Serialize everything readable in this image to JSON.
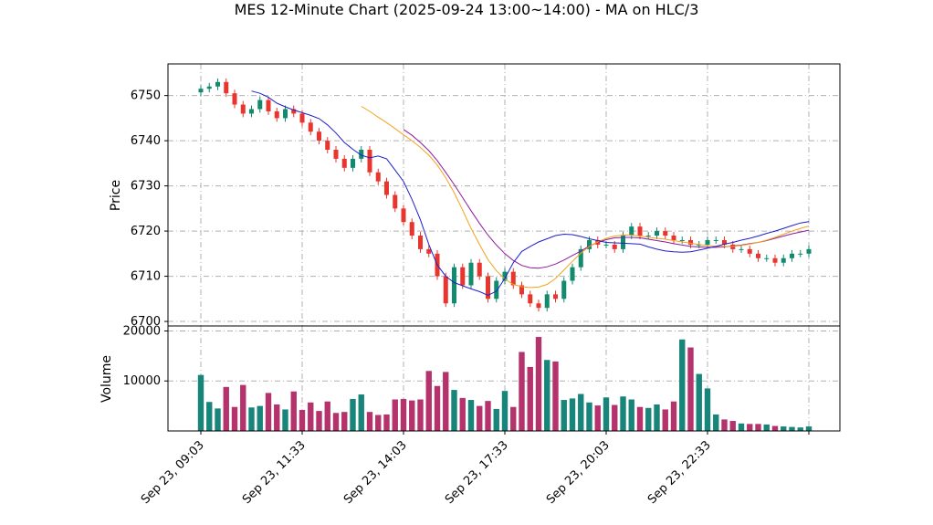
{
  "chart_data": {
    "type": "candlestick",
    "title": "MES 12-Minute Chart (2025-09-24 13:00~14:00) - MA on HLC/3",
    "price_panel": {
      "ylabel": "Price",
      "ylim": [
        6699,
        6757
      ],
      "yticks": [
        6700,
        6710,
        6720,
        6730,
        6740,
        6750
      ],
      "grid": true
    },
    "volume_panel": {
      "ylabel": "Volume",
      "ylim": [
        0,
        21000
      ],
      "yticks": [
        10000,
        20000
      ],
      "grid": true
    },
    "x_axis": {
      "tick_labels": [
        "Sep 23, 09:03",
        "Sep 23, 11:33",
        "Sep 23, 14:03",
        "Sep 23, 17:33",
        "Sep 23, 20:03",
        "Sep 23, 22:33",
        ""
      ],
      "tick_index": [
        0,
        12,
        24,
        36,
        48,
        60,
        72
      ]
    },
    "colors": {
      "up": "#118a6e",
      "down": "#e8352e",
      "ma_short": "#1f1fcc",
      "ma_mid": "#f2a31b",
      "ma_long": "#8e1aa1",
      "volume_up": "#17857a",
      "volume_down": "#b4336c"
    },
    "series_close": [
      6751.5,
      6752,
      6753,
      6750.5,
      6748,
      6746,
      6747,
      6749,
      6746.5,
      6745,
      6747,
      6746,
      6744,
      6742,
      6740,
      6738,
      6736,
      6734,
      6736,
      6738,
      6733,
      6731,
      6728,
      6725,
      6722,
      6719,
      6716,
      6715,
      6710,
      6704,
      6712,
      6708,
      6713,
      6710,
      6705,
      6709,
      6711,
      6708,
      6706,
      6704,
      6703,
      6706,
      6705,
      6709,
      6712,
      6716,
      6718,
      6717,
      6717,
      6716,
      6719,
      6721,
      6719,
      6719,
      6720,
      6719,
      6718,
      6718,
      6717,
      6717,
      6718,
      6718,
      6717,
      6716,
      6716,
      6715,
      6714,
      6714,
      6713,
      6714,
      6715,
      6715,
      6716
    ],
    "volume_series": [
      11200,
      5800,
      4500,
      8800,
      4800,
      9200,
      4700,
      5000,
      7600,
      5300,
      4300,
      7900,
      4200,
      5700,
      4000,
      5900,
      3600,
      3800,
      6400,
      7300,
      3800,
      3200,
      3300,
      6300,
      6400,
      6100,
      6300,
      12000,
      9000,
      11800,
      8200,
      6600,
      6200,
      5000,
      6000,
      4400,
      8000,
      4800,
      15800,
      12800,
      18800,
      14200,
      13900,
      6200,
      6500,
      7400,
      5700,
      5100,
      6700,
      5200,
      6900,
      6300,
      4800,
      4600,
      5300,
      4300,
      5900,
      18300,
      16700,
      11400,
      8500,
      3300,
      2300,
      2000,
      1500,
      1400,
      1400,
      1300,
      1000,
      900,
      800,
      700,
      900
    ],
    "ma_short": [
      6751,
      6750.5,
      6749.6,
      6748.3,
      6747.5,
      6746.8,
      6746.2,
      6745.6,
      6744.9,
      6743.5,
      6741.7,
      6739.6,
      6738.1,
      6736.8,
      6736.2,
      6736.6,
      6736,
      6733.5,
      6731,
      6727,
      6722.5,
      6717,
      6712.5,
      6710,
      6708.6,
      6707.9,
      6707.2,
      6706.6,
      6705.8,
      6706.7,
      6709.5,
      6713,
      6715.5,
      6716.6,
      6717.6,
      6718.3,
      6719,
      6719.3,
      6719.2,
      6718.8,
      6718.3,
      6717.9,
      6717.5,
      6717.4,
      6717.3,
      6717.2,
      6717.1,
      6716.5,
      6716,
      6715.6,
      6715.4,
      6715.3,
      6715.4,
      6715.8,
      6716.2,
      6716.6,
      6717.1,
      6717.5,
      6718,
      6718.4,
      6718.9,
      6719.5,
      6720,
      6720.6,
      6721.2,
      6721.8,
      6722.1
    ],
    "ma_mid": [
      6747.6,
      6746.5,
      6745.2,
      6744,
      6742.7,
      6741.3,
      6740,
      6738.5,
      6736.8,
      6734.6,
      6731.8,
      6728.5,
      6724.6,
      6720.6,
      6717,
      6713.7,
      6711.2,
      6709.4,
      6708.2,
      6707.7,
      6707.5,
      6707.6,
      6708.2,
      6709.5,
      6711.4,
      6713.3,
      6715.1,
      6716.6,
      6717.6,
      6718.4,
      6718.9,
      6719.1,
      6719.1,
      6718.9,
      6718.6,
      6718.4,
      6718.2,
      6717.9,
      6717.6,
      6717.3,
      6717,
      6716.8,
      6716.6,
      6716.6,
      6716.6,
      6716.8,
      6717.1,
      6717.5,
      6718,
      6718.6,
      6719.3,
      6720,
      6720.6,
      6721.1
    ],
    "ma_long": [
      6742.5,
      6741.2,
      6739.6,
      6737.8,
      6735.6,
      6733,
      6730.3,
      6727.4,
      6724.5,
      6721.7,
      6719.1,
      6716.9,
      6715,
      6713.5,
      6712.4,
      6711.9,
      6711.8,
      6712.1,
      6712.7,
      6713.6,
      6714.6,
      6715.6,
      6716.7,
      6717.5,
      6718.1,
      6718.5,
      6718.6,
      6718.6,
      6718.5,
      6718.2,
      6717.9,
      6717.6,
      6717.2,
      6716.9,
      6716.6,
      6716.5,
      6716.4,
      6716.4,
      6716.5,
      6716.7,
      6716.9,
      6717.2,
      6717.5,
      6717.9,
      6718.4,
      6718.9,
      6719.4,
      6719.8,
      6720.2
    ]
  }
}
